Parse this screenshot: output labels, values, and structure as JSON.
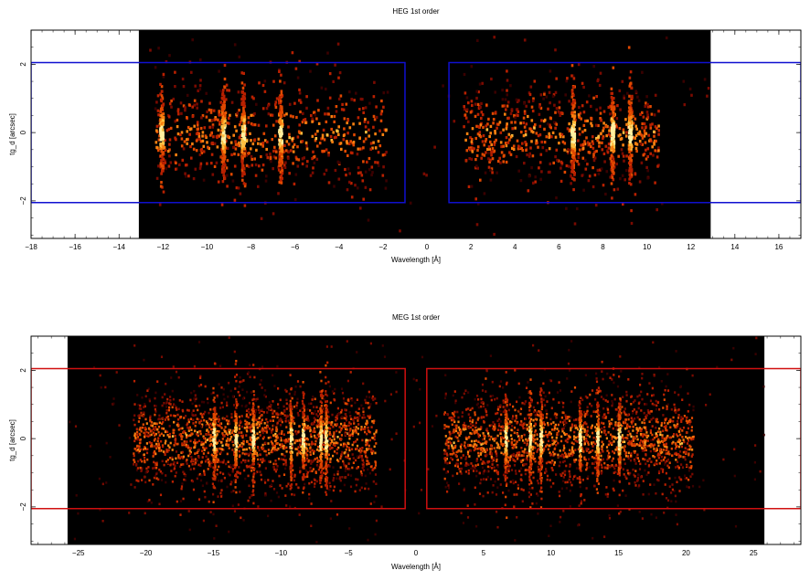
{
  "colors": {
    "background": "#000000",
    "heg_region": "#1010d0",
    "meg_region": "#d01010",
    "colormap": [
      "#3a0000",
      "#7a0a00",
      "#b82000",
      "#e04800",
      "#f88010",
      "#ffc040",
      "#fff0a0"
    ]
  },
  "chart_data": [
    {
      "type": "heatmap",
      "title": "HEG 1st order",
      "xlabel": "Wavelength [Å]",
      "ylabel": "tg_d [arcsec]",
      "xlim": [
        -18,
        17
      ],
      "ylim": [
        -3.1,
        3.0
      ],
      "x_ticks": [
        -18,
        -16,
        -14,
        -12,
        -10,
        -8,
        -6,
        -4,
        -2,
        0,
        2,
        4,
        6,
        8,
        10,
        12,
        14,
        16
      ],
      "x_tick_labels": [
        "−18",
        "−16",
        "−14",
        "−12",
        "−10",
        "−8",
        "−6",
        "−4",
        "−2",
        "0",
        "2",
        "4",
        "6",
        "8",
        "10",
        "12",
        "14",
        "16"
      ],
      "y_ticks": [
        -2,
        0,
        2
      ],
      "y_tick_labels": [
        "−2",
        "0",
        "2"
      ],
      "data_extent_x": [
        -13.1,
        12.9
      ],
      "regions": [
        {
          "name": "HEG minus order",
          "x": [
            -18,
            -1.0
          ],
          "y": [
            -2.05,
            2.05
          ]
        },
        {
          "name": "HEG plus order",
          "x": [
            1.0,
            17
          ],
          "y": [
            -2.05,
            2.05
          ]
        }
      ],
      "source_extent": [
        [
          -12.4,
          -1.9
        ],
        [
          1.6,
          10.5
        ]
      ],
      "emission_lines": [
        -12.1,
        -9.3,
        -8.4,
        -6.7,
        6.6,
        8.4,
        9.2
      ],
      "grid": false
    },
    {
      "type": "heatmap",
      "title": "MEG 1st order",
      "xlabel": "Wavelength [Å]",
      "ylabel": "tg_d [arcsec]",
      "xlim": [
        -28.5,
        28.5
      ],
      "ylim": [
        -3.1,
        3.0
      ],
      "x_ticks": [
        -25,
        -20,
        -15,
        -10,
        -5,
        0,
        5,
        10,
        15,
        20,
        25
      ],
      "x_tick_labels": [
        "−25",
        "−20",
        "−15",
        "−10",
        "−5",
        "0",
        "5",
        "10",
        "15",
        "20",
        "25"
      ],
      "y_ticks": [
        -2,
        0,
        2
      ],
      "y_tick_labels": [
        "−2",
        "0",
        "2"
      ],
      "data_extent_x": [
        -25.8,
        25.8
      ],
      "regions": [
        {
          "name": "MEG minus order",
          "x": [
            -28.5,
            -0.8
          ],
          "y": [
            -2.05,
            2.05
          ]
        },
        {
          "name": "MEG plus order",
          "x": [
            0.8,
            28.5
          ],
          "y": [
            -2.05,
            2.05
          ]
        }
      ],
      "source_extent": [
        [
          -21.0,
          -3.0
        ],
        [
          2.0,
          20.5
        ]
      ],
      "emission_lines": [
        -15.0,
        -13.4,
        -12.1,
        -9.3,
        -8.4,
        -7.1,
        -6.7,
        6.6,
        8.4,
        9.2,
        12.1,
        13.4,
        15.0
      ],
      "grid": false
    }
  ]
}
